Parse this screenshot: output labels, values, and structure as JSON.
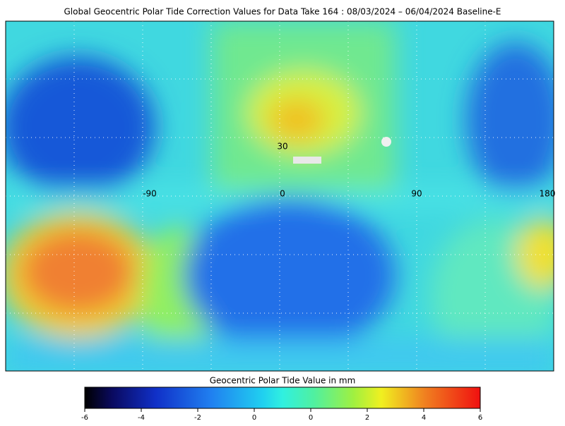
{
  "title": "Global Geocentric Polar Tide Correction Values for Data Take 164 : 08/03/2024 – 06/04/2024 Baseline-E",
  "map": {
    "lon_labels": [
      "-90",
      "0",
      "90",
      "180"
    ],
    "lat_labels": [
      "30"
    ]
  },
  "colorbar": {
    "label": "Geocentric Polar Tide Value in mm",
    "ticks": [
      "-6",
      "-4",
      "-2",
      "0",
      "0",
      "2",
      "4",
      "6"
    ]
  }
}
